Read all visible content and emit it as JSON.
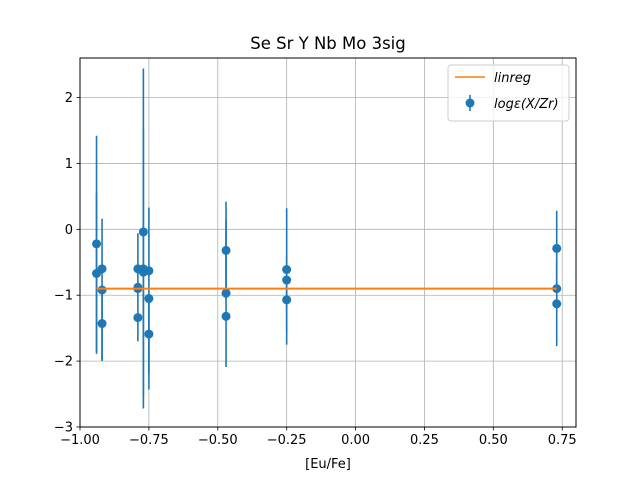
{
  "chart_data": {
    "type": "scatter",
    "title": "Se Sr Y Nb Mo 3sig",
    "xlabel": "[Eu/Fe]",
    "ylabel": "",
    "xlim": [
      -1.0,
      0.8
    ],
    "ylim": [
      -3.0,
      2.6
    ],
    "xticks": [
      -1.0,
      -0.75,
      -0.5,
      -0.25,
      0.0,
      0.25,
      0.5,
      0.75
    ],
    "xtick_labels": [
      "−1.00",
      "−0.75",
      "−0.50",
      "−0.25",
      "0.00",
      "0.25",
      "0.50",
      "0.75"
    ],
    "yticks": [
      -3,
      -2,
      -1,
      0,
      1,
      2
    ],
    "ytick_labels": [
      "−3",
      "−2",
      "−1",
      "0",
      "1",
      "2"
    ],
    "grid": true,
    "legend_position": "top-right",
    "colors": {
      "points": "#1f77b4",
      "linreg": "#ff7f0e",
      "grid": "#b0b0b0"
    },
    "series": [
      {
        "name": "logε(X/Zr)",
        "kind": "errorbar",
        "points": [
          {
            "x": -0.94,
            "y": -0.22,
            "err": 1.64
          },
          {
            "x": -0.94,
            "y": -0.67,
            "err": 1.22
          },
          {
            "x": -0.92,
            "y": -0.6,
            "err": 0.0
          },
          {
            "x": -0.92,
            "y": -0.92,
            "err": 1.08
          },
          {
            "x": -0.92,
            "y": -1.43,
            "err": 0.55
          },
          {
            "x": -0.79,
            "y": -0.6,
            "err": 0.0
          },
          {
            "x": -0.79,
            "y": -0.9,
            "err": 0.0
          },
          {
            "x": -0.79,
            "y": -1.34,
            "err": 0.0
          },
          {
            "x": -0.79,
            "y": -0.88,
            "err": 0.82
          },
          {
            "x": -0.77,
            "y": -0.04,
            "err": 2.48
          },
          {
            "x": -0.77,
            "y": -0.6,
            "err": 2.12
          },
          {
            "x": -0.77,
            "y": -0.65,
            "err": 0.0
          },
          {
            "x": -0.75,
            "y": -0.63,
            "err": 0.0
          },
          {
            "x": -0.75,
            "y": -1.05,
            "err": 1.38
          },
          {
            "x": -0.75,
            "y": -1.59,
            "err": 0.6
          },
          {
            "x": -0.47,
            "y": -0.32,
            "err": 0.74
          },
          {
            "x": -0.47,
            "y": -0.97,
            "err": 1.12
          },
          {
            "x": -0.47,
            "y": -1.32,
            "err": 0.0
          },
          {
            "x": -0.25,
            "y": -0.61,
            "err": 0.93
          },
          {
            "x": -0.25,
            "y": -0.77,
            "err": 0.0
          },
          {
            "x": -0.25,
            "y": -1.07,
            "err": 0.68
          },
          {
            "x": 0.73,
            "y": -0.29,
            "err": 0.57
          },
          {
            "x": 0.73,
            "y": -0.9,
            "err": 0.0
          },
          {
            "x": 0.73,
            "y": -1.13,
            "err": 0.64
          }
        ]
      },
      {
        "name": "linreg",
        "kind": "line",
        "x": [
          -0.94,
          0.73
        ],
        "y": [
          -0.9,
          -0.9
        ]
      }
    ]
  }
}
